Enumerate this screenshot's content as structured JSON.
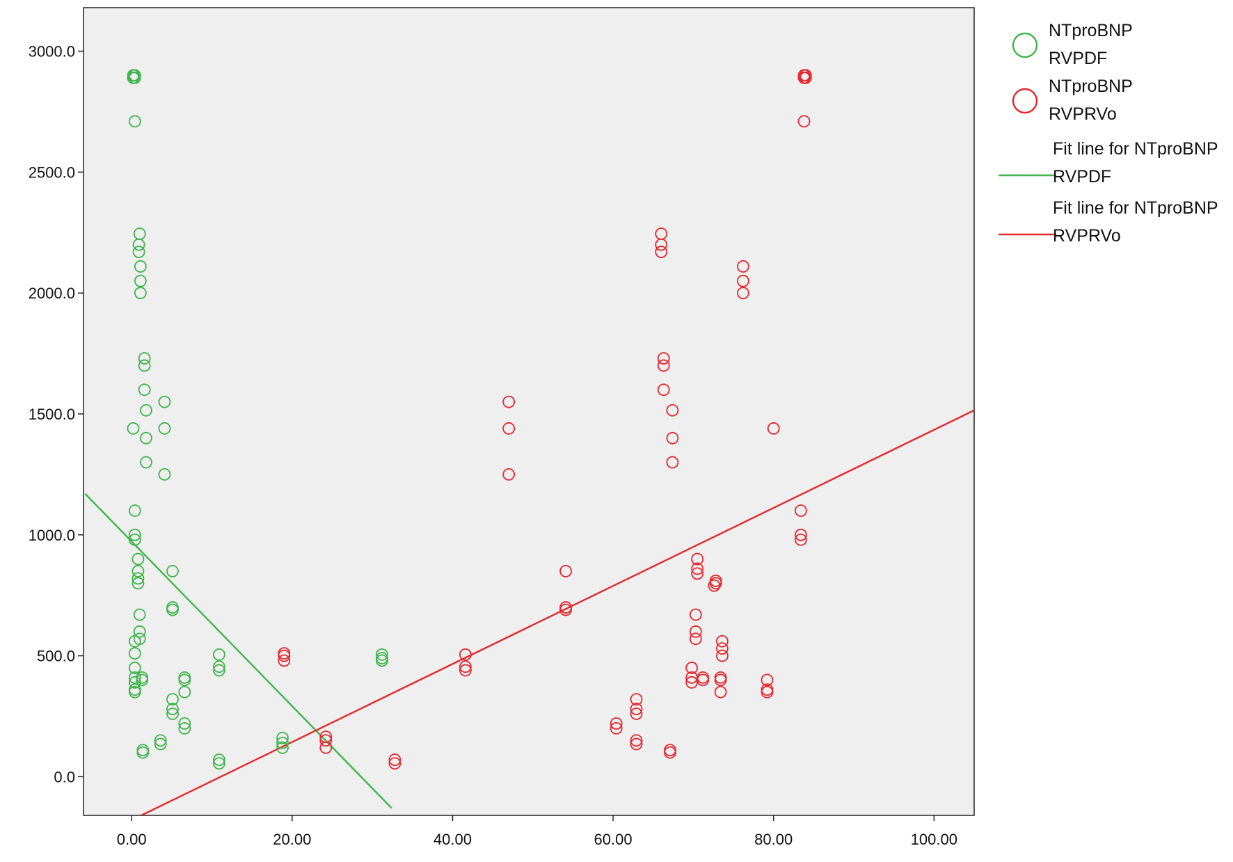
{
  "chart_data": {
    "type": "scatter",
    "title": "",
    "xlabel": "",
    "ylabel": "",
    "xlim": [
      -6,
      105
    ],
    "ylim": [
      -160,
      3180
    ],
    "grid": false,
    "legend_position": "right",
    "x_ticks": [
      0,
      20,
      40,
      60,
      80,
      100
    ],
    "x_tick_labels": [
      "0.00",
      "20.00",
      "40.00",
      "60.00",
      "80.00",
      "100.00"
    ],
    "y_ticks": [
      0,
      500,
      1000,
      1500,
      2000,
      2500,
      3000
    ],
    "y_tick_labels": [
      "0.0",
      "500.0",
      "1000.0",
      "1500.0",
      "2000.0",
      "2500.0",
      "3000.0"
    ],
    "plot_background": "#efefef",
    "series": [
      {
        "name": "NTproBNP RVPDF",
        "legend_lines": [
          "NTproBNP",
          "RVPDF"
        ],
        "color": "#3db54a",
        "marker": "circle",
        "points": [
          [
            0.2,
            2900
          ],
          [
            0.2,
            2890
          ],
          [
            0.4,
            2900
          ],
          [
            0.4,
            2890
          ],
          [
            0.4,
            2710
          ],
          [
            1.0,
            2245
          ],
          [
            0.9,
            2200
          ],
          [
            0.9,
            2170
          ],
          [
            1.1,
            2110
          ],
          [
            1.1,
            2050
          ],
          [
            1.1,
            2000
          ],
          [
            1.6,
            1730
          ],
          [
            1.6,
            1700
          ],
          [
            1.6,
            1600
          ],
          [
            4.1,
            1550
          ],
          [
            1.8,
            1515
          ],
          [
            0.2,
            1440
          ],
          [
            4.1,
            1440
          ],
          [
            1.8,
            1400
          ],
          [
            1.8,
            1300
          ],
          [
            4.1,
            1250
          ],
          [
            0.4,
            1100
          ],
          [
            0.4,
            1000
          ],
          [
            0.4,
            980
          ],
          [
            0.8,
            900
          ],
          [
            0.8,
            850
          ],
          [
            0.8,
            820
          ],
          [
            0.8,
            800
          ],
          [
            5.1,
            850
          ],
          [
            5.1,
            700
          ],
          [
            5.1,
            690
          ],
          [
            1.0,
            670
          ],
          [
            1.0,
            600
          ],
          [
            1.0,
            570
          ],
          [
            0.4,
            560
          ],
          [
            0.4,
            510
          ],
          [
            10.9,
            505
          ],
          [
            10.9,
            455
          ],
          [
            10.9,
            440
          ],
          [
            0.4,
            450
          ],
          [
            0.4,
            410
          ],
          [
            0.4,
            390
          ],
          [
            0.4,
            360
          ],
          [
            0.4,
            350
          ],
          [
            1.3,
            410
          ],
          [
            1.3,
            400
          ],
          [
            6.6,
            410
          ],
          [
            6.6,
            400
          ],
          [
            6.6,
            350
          ],
          [
            5.1,
            320
          ],
          [
            5.1,
            280
          ],
          [
            5.1,
            260
          ],
          [
            6.6,
            220
          ],
          [
            6.6,
            200
          ],
          [
            3.6,
            150
          ],
          [
            3.6,
            135
          ],
          [
            1.4,
            110
          ],
          [
            1.4,
            100
          ],
          [
            10.9,
            70
          ],
          [
            10.9,
            55
          ],
          [
            18.8,
            160
          ],
          [
            18.8,
            140
          ],
          [
            18.8,
            120
          ],
          [
            31.2,
            505
          ],
          [
            31.2,
            490
          ],
          [
            31.2,
            480
          ]
        ]
      },
      {
        "name": "NTproBNP RVPRVo",
        "legend_lines": [
          "NTproBNP",
          "RVPRVo"
        ],
        "color": "#e8262c",
        "marker": "circle",
        "points": [
          [
            83.8,
            2900
          ],
          [
            83.8,
            2890
          ],
          [
            84.0,
            2900
          ],
          [
            84.0,
            2890
          ],
          [
            83.8,
            2710
          ],
          [
            66.0,
            2245
          ],
          [
            66.0,
            2200
          ],
          [
            66.0,
            2170
          ],
          [
            76.2,
            2110
          ],
          [
            76.2,
            2050
          ],
          [
            76.2,
            2000
          ],
          [
            66.3,
            1730
          ],
          [
            66.3,
            1700
          ],
          [
            66.3,
            1600
          ],
          [
            67.4,
            1515
          ],
          [
            67.4,
            1400
          ],
          [
            67.4,
            1300
          ],
          [
            47.0,
            1550
          ],
          [
            47.0,
            1440
          ],
          [
            47.0,
            1250
          ],
          [
            80.0,
            1440
          ],
          [
            83.4,
            1100
          ],
          [
            83.4,
            1000
          ],
          [
            83.4,
            980
          ],
          [
            70.5,
            900
          ],
          [
            70.5,
            860
          ],
          [
            70.5,
            840
          ],
          [
            72.8,
            810
          ],
          [
            72.8,
            800
          ],
          [
            72.6,
            790
          ],
          [
            54.1,
            850
          ],
          [
            54.1,
            700
          ],
          [
            54.1,
            690
          ],
          [
            70.3,
            670
          ],
          [
            70.3,
            600
          ],
          [
            70.3,
            570
          ],
          [
            73.6,
            560
          ],
          [
            73.6,
            530
          ],
          [
            73.6,
            500
          ],
          [
            41.6,
            505
          ],
          [
            41.6,
            455
          ],
          [
            41.6,
            440
          ],
          [
            19.0,
            510
          ],
          [
            19.0,
            500
          ],
          [
            19.0,
            480
          ],
          [
            69.8,
            450
          ],
          [
            69.8,
            410
          ],
          [
            69.8,
            390
          ],
          [
            71.2,
            410
          ],
          [
            71.2,
            400
          ],
          [
            73.4,
            410
          ],
          [
            73.4,
            400
          ],
          [
            73.4,
            350
          ],
          [
            79.2,
            400
          ],
          [
            79.2,
            360
          ],
          [
            79.2,
            350
          ],
          [
            62.9,
            320
          ],
          [
            62.9,
            280
          ],
          [
            62.9,
            260
          ],
          [
            60.4,
            220
          ],
          [
            60.4,
            200
          ],
          [
            62.9,
            150
          ],
          [
            62.9,
            135
          ],
          [
            67.1,
            110
          ],
          [
            67.1,
            100
          ],
          [
            24.2,
            165
          ],
          [
            24.2,
            150
          ],
          [
            24.2,
            120
          ],
          [
            32.8,
            70
          ],
          [
            32.8,
            55
          ]
        ]
      }
    ],
    "fit_lines": [
      {
        "name": "Fit line for NTproBNP RVPDF",
        "legend_lines": [
          "Fit line for NTproBNP",
          "RVPDF"
        ],
        "color": "#3db54a",
        "x": [
          -5.8,
          32.4
        ],
        "y": [
          1170,
          -130
        ]
      },
      {
        "name": "Fit line for NTproBNP RVPRVo",
        "legend_lines": [
          "Fit line for NTproBNP",
          "RVPRVo"
        ],
        "color": "#e8262c",
        "x": [
          1.2,
          105
        ],
        "y": [
          -160,
          1515
        ]
      }
    ]
  }
}
